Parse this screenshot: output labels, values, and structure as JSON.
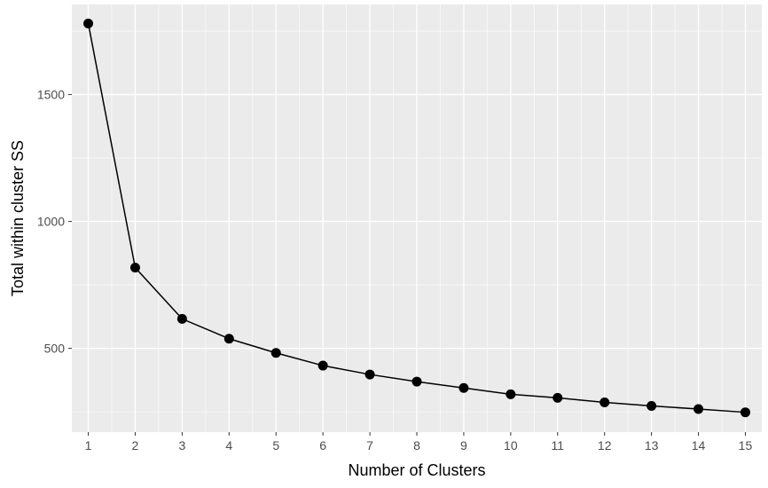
{
  "chart_data": {
    "type": "line",
    "xlabel": "Number of Clusters",
    "ylabel": "Total within cluster SS",
    "x": [
      1,
      2,
      3,
      4,
      5,
      6,
      7,
      8,
      9,
      10,
      11,
      12,
      13,
      14,
      15
    ],
    "series": [
      {
        "values": [
          1780,
          818,
          616,
          538,
          482,
          432,
          397,
          369,
          344,
          319,
          305,
          287,
          273,
          261,
          248
        ]
      }
    ],
    "xticks": [
      1,
      2,
      3,
      4,
      5,
      6,
      7,
      8,
      9,
      10,
      11,
      12,
      13,
      14,
      15
    ],
    "yticks": [
      500,
      1000,
      1500
    ],
    "xlim": [
      0.65,
      15.35
    ],
    "ylim": [
      170,
      1855
    ],
    "grid": true,
    "colors": {
      "panel_background": "#ebebeb",
      "grid_line": "#ffffff",
      "series": "#000000",
      "tick_label": "#4d4d4d"
    }
  }
}
